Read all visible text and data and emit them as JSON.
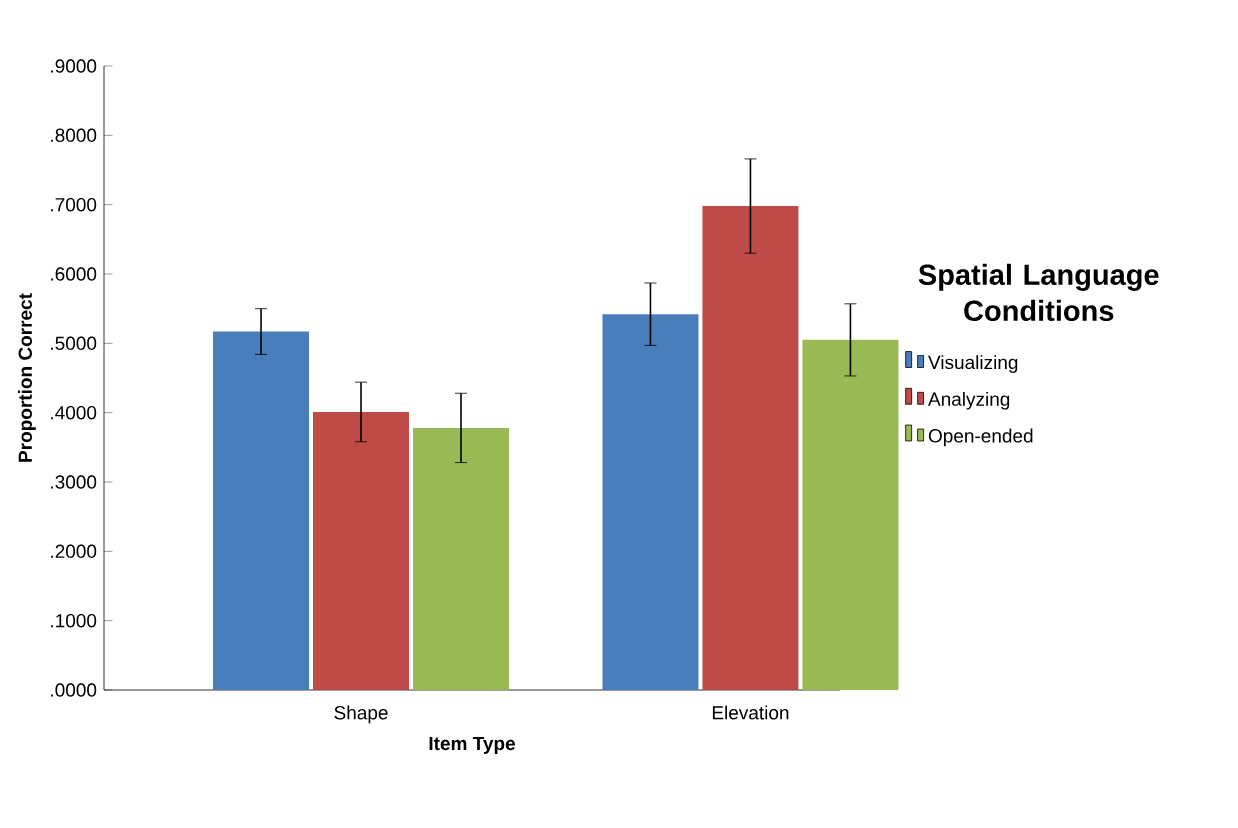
{
  "chart_data": {
    "type": "bar",
    "xlabel": "Item Type",
    "ylabel": "Proportion Correct",
    "legend_title": "Spatial Language Conditions",
    "categories": [
      "Shape",
      "Elevation"
    ],
    "series": [
      {
        "name": "Visualizing",
        "color": "#4a7ebb",
        "values": [
          0.517,
          0.542
        ],
        "errors": [
          0.033,
          0.045
        ]
      },
      {
        "name": "Analyzing",
        "color": "#be4b48",
        "values": [
          0.401,
          0.698
        ],
        "errors": [
          0.043,
          0.068
        ]
      },
      {
        "name": "Open-ended",
        "color": "#98b954",
        "values": [
          0.378,
          0.505
        ],
        "errors": [
          0.05,
          0.052
        ]
      }
    ],
    "ylim": [
      0,
      0.9
    ],
    "yticks": [
      {
        "value": 0,
        "label": ".0000"
      },
      {
        "value": 0.1,
        "label": ".1000"
      },
      {
        "value": 0.2,
        "label": ".2000"
      },
      {
        "value": 0.3,
        "label": ".3000"
      },
      {
        "value": 0.4,
        "label": ".4000"
      },
      {
        "value": 0.5,
        "label": ".5000"
      },
      {
        "value": 0.6,
        "label": ".6000"
      },
      {
        "value": 0.7,
        "label": ".7000"
      },
      {
        "value": 0.8,
        "label": ".8000"
      },
      {
        "value": 0.9,
        "label": ".9000"
      }
    ],
    "grid": false,
    "legend": "right"
  }
}
